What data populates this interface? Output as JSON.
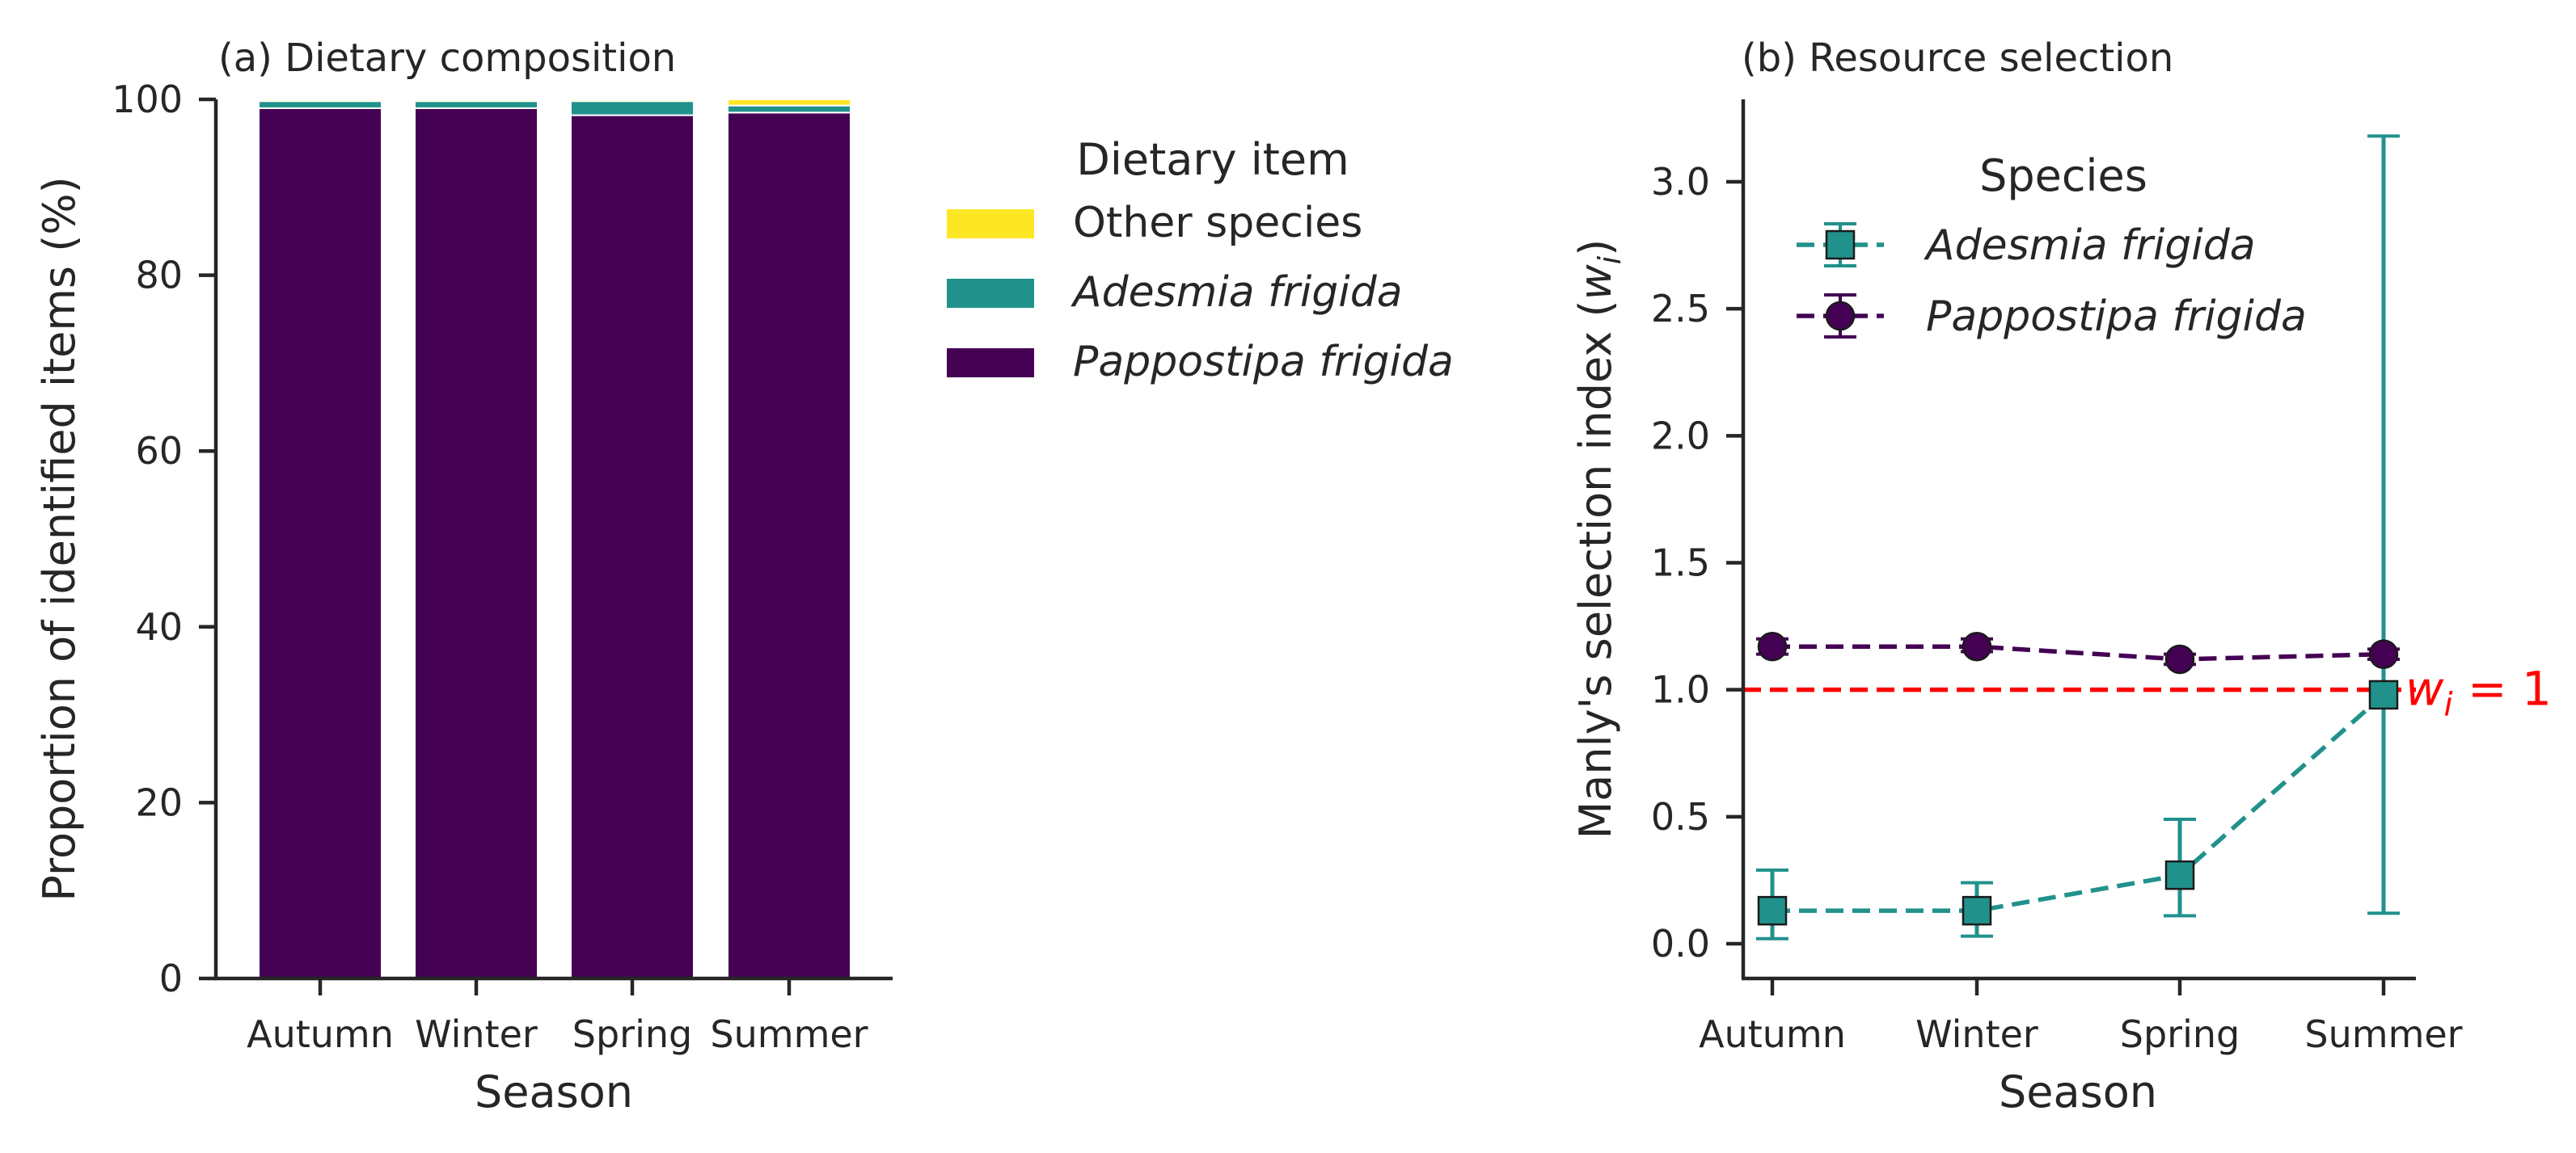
{
  "chart_data": [
    {
      "type": "bar",
      "stacked": true,
      "title": "(a) Dietary composition",
      "xlabel": "Season",
      "ylabel": "Proportion of identified items (%)",
      "ylim": [
        0,
        100
      ],
      "yticks": [
        0,
        20,
        40,
        60,
        80,
        100
      ],
      "categories": [
        "Autumn",
        "Winter",
        "Spring",
        "Summer"
      ],
      "legend_title": "Dietary item",
      "legend_position": "outside-right",
      "series": [
        {
          "name": "Pappostipa frigida",
          "color": "#440154",
          "italic": true,
          "values": [
            99.0,
            99.0,
            98.2,
            98.5
          ]
        },
        {
          "name": "Adesmia frigida",
          "color": "#21918c",
          "italic": true,
          "values": [
            0.8,
            0.8,
            1.6,
            0.8
          ]
        },
        {
          "name": "Other species",
          "color": "#fde725",
          "italic": false,
          "values": [
            0.2,
            0.2,
            0.2,
            0.7
          ]
        }
      ]
    },
    {
      "type": "line",
      "title": "(b) Resource selection",
      "xlabel": "Season",
      "ylabel_main": "Manly's selection index (",
      "ylabel_var": "w",
      "ylabel_sub": "i",
      "ylabel_end": ")",
      "ylim": [
        -0.13,
        3.33
      ],
      "yticks": [
        "0.0",
        "0.5",
        "1.0",
        "1.5",
        "2.0",
        "2.5",
        "3.0"
      ],
      "categories": [
        "Autumn",
        "Winter",
        "Spring",
        "Summer"
      ],
      "legend_title": "Species",
      "legend_position": "upper-center",
      "series": [
        {
          "name": "Adesmia frigida",
          "color": "#21918c",
          "marker": "square",
          "linestyle": "dashed",
          "values": [
            0.13,
            0.13,
            0.27,
            0.98
          ],
          "err_low": [
            0.02,
            0.03,
            0.11,
            0.12
          ],
          "err_high": [
            0.29,
            0.24,
            0.49,
            3.18
          ]
        },
        {
          "name": "Pappostipa frigida",
          "color": "#440154",
          "marker": "circle",
          "linestyle": "dashed",
          "values": [
            1.17,
            1.17,
            1.12,
            1.14
          ],
          "err_low": [
            1.14,
            1.15,
            1.1,
            1.12
          ],
          "err_high": [
            1.2,
            1.2,
            1.14,
            1.16
          ]
        }
      ],
      "reference_line": {
        "y": 1.0,
        "color": "#ff0000",
        "label_var": "w",
        "label_sub": "i",
        "label_rest": " = 1"
      }
    }
  ]
}
